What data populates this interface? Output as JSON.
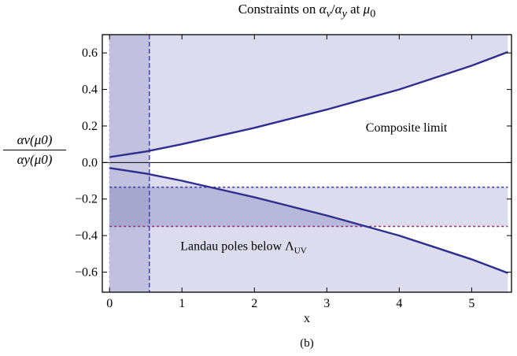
{
  "figure": {
    "title_prefix": "Constraints on ",
    "title_ratio_num": "α",
    "title_ratio_num_sub": "v",
    "title_slash": "/",
    "title_ratio_den": "α",
    "title_ratio_den_sub": "y",
    "title_at": " at ",
    "title_mu": "μ",
    "title_mu_sub": "0",
    "ylabel_num": "αv(μ0)",
    "ylabel_den": "αy(μ0)",
    "xlabel": "x",
    "caption": "(b)",
    "composite_label": "Composite limit",
    "landau_label_prefix": "Landau poles below ",
    "landau_label_lambda": "Λ",
    "landau_label_sub": "UV"
  },
  "colors": {
    "curve": "#2e2e8f",
    "region_fill": "#dcdcee",
    "dark_band": "#b8b8da",
    "overlap": "#9a9ac8",
    "blue_dashed": "#3a3ab0",
    "purple_dashed": "#8e2c6e",
    "zero_line": "#000000"
  },
  "chart_data": {
    "type": "line",
    "xlabel": "x",
    "ylabel": "αv(μ0)/αy(μ0)",
    "xlim": [
      -0.1,
      5.55
    ],
    "ylim": [
      -0.71,
      0.7
    ],
    "xticks": [
      0,
      1,
      2,
      3,
      4,
      5
    ],
    "yticks": [
      -0.6,
      -0.4,
      -0.2,
      0.0,
      0.2,
      0.4,
      0.6
    ],
    "grid": false,
    "series": [
      {
        "x": [
          0,
          0.5,
          1,
          1.5,
          2,
          2.5,
          3,
          3.5,
          4,
          4.5,
          5,
          5.5
        ],
        "y": [
          0.03,
          0.06,
          0.1,
          0.145,
          0.19,
          0.24,
          0.29,
          0.345,
          0.4,
          0.465,
          0.53,
          0.605
        ]
      },
      {
        "x": [
          0,
          0.5,
          1,
          1.5,
          2,
          2.5,
          3,
          3.5,
          4,
          4.5,
          5,
          5.5
        ],
        "y": [
          -0.03,
          -0.06,
          -0.1,
          -0.145,
          -0.19,
          -0.24,
          -0.29,
          -0.345,
          -0.4,
          -0.465,
          -0.53,
          -0.605
        ]
      }
    ],
    "regions": [
      {
        "label": "Composite limit",
        "x_range": [
          0,
          5.5
        ],
        "bound": "above upper curve"
      },
      {
        "label": "Landau poles below ΛUV",
        "x_range": [
          0,
          5.5
        ],
        "bound": "below lower curve"
      }
    ],
    "band": {
      "y_range": [
        -0.35,
        -0.135
      ],
      "x_range": [
        0,
        5.5
      ]
    },
    "vertical_band": {
      "x_range": [
        0,
        0.55
      ]
    },
    "reference_lines": [
      {
        "orientation": "horizontal",
        "y": 0.0,
        "style": "solid"
      },
      {
        "orientation": "horizontal",
        "y": -0.135,
        "style": "dotted"
      },
      {
        "orientation": "horizontal",
        "y": -0.35,
        "style": "dotted"
      },
      {
        "orientation": "vertical",
        "x": 0.55,
        "style": "dashed"
      },
      {
        "orientation": "vertical",
        "x": 0,
        "style": "dotted"
      }
    ]
  }
}
